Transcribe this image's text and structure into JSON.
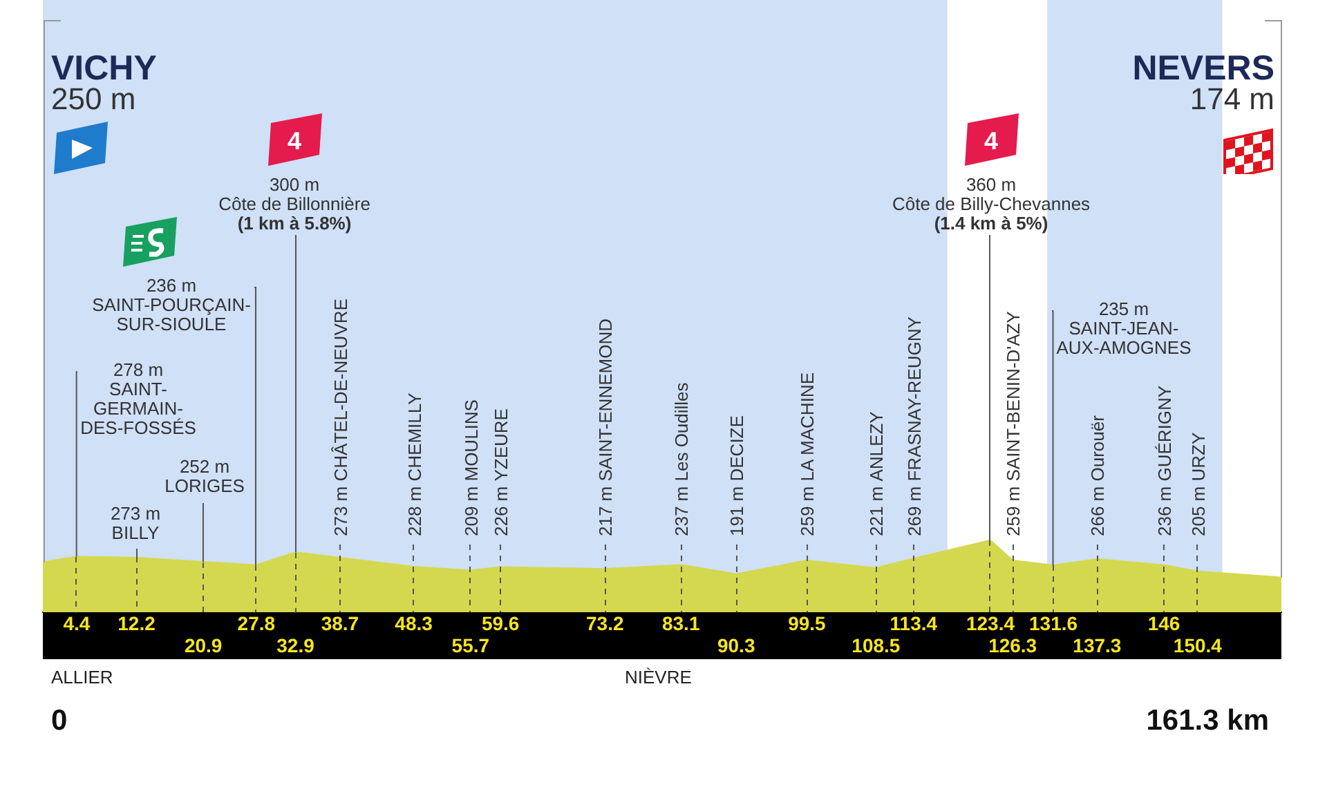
{
  "chart_data": {
    "type": "area",
    "color": "#d4d84e",
    "x": [
      0,
      4.4,
      12.2,
      20.9,
      27.8,
      32.9,
      38.7,
      48.3,
      55.7,
      59.6,
      73.2,
      83.1,
      90.3,
      99.5,
      108.5,
      113.4,
      123.4,
      126.3,
      131.6,
      137.3,
      146,
      150.4,
      161.3
    ],
    "values": [
      250,
      278,
      273,
      252,
      236,
      300,
      273,
      228,
      209,
      226,
      217,
      237,
      191,
      259,
      221,
      269,
      360,
      259,
      235,
      266,
      236,
      205,
      174
    ],
    "value_labels": [
      null,
      null,
      "273 m",
      null,
      null,
      null,
      "273 m",
      "228 m",
      "209 m",
      "226 m",
      "217 m",
      "237 m",
      "191 m",
      "259 m",
      "221 m",
      "269 m",
      null,
      "259 m",
      null,
      "266 m",
      "236 m",
      "205 m",
      null
    ],
    "xlim": [
      0,
      161.3
    ],
    "xticks": [
      4.4,
      12.2,
      27.8,
      38.7,
      48.3,
      59.6,
      73.2,
      83.1,
      99.5,
      113.4,
      123.4,
      131.6,
      146
    ],
    "tick_labels": "x",
    "grid": "x",
    "legend": false,
    "marker": "none",
    "bands": [
      {
        "axis": "x",
        "from": 0,
        "to": 117.8,
        "color": "#cfe0f7"
      },
      {
        "axis": "x",
        "from": 130.8,
        "to": 153.6,
        "color": "#cfe0f7"
      }
    ],
    "annotations": [
      {
        "text": "VICHY\n250 m",
        "x": 0,
        "y": 250
      },
      {
        "text": "NEVERS\n174 m",
        "x": 161.3,
        "y": 174
      },
      {
        "text": "278 m\nSAINT-\nGERMAIN-\nDES-FOSSÉS",
        "x": 4.4,
        "y": 278
      },
      "BILLY",
      {
        "text": "252 m\nLORIGES",
        "x": 20.9,
        "y": 252
      },
      {
        "text": "236 m\nSAINT-POURÇAIN-\nSUR-SIOULE",
        "x": 27.8,
        "y": 236
      },
      {
        "text": "300 m\nCôte de Billonnière\n(1 km à 5.8%)",
        "x": 32.9,
        "y": 300
      },
      "4",
      "CHÂTEL-DE-NEUVRE",
      "CHEMILLY",
      "MOULINS",
      "YZEURE",
      "SAINT-ENNEMOND",
      "Les Oudilles",
      "DECIZE",
      "LA MACHINE",
      "ANLEZY",
      "FRASNAY-REUGNY",
      {
        "text": "360 m\nCôte de Billy-Chevannes\n(1.4 km à 5%)",
        "x": 123.4,
        "y": 360
      },
      "4",
      "SAINT-BENIN-D'AZY",
      {
        "text": "235 m\nSAINT-JEAN-\nAUX-AMOGNES",
        "x": 131.6,
        "y": 235
      },
      "Ourouër",
      "GUÉRIGNY",
      "URZY",
      "ALLIER",
      "NIÈVRE",
      "0",
      {
        "text": "20.9",
        "x": 20.9
      },
      {
        "text": "32.9",
        "x": 32.9
      },
      {
        "text": "55.7",
        "x": 55.7
      },
      {
        "text": "90.3",
        "x": 90.3
      },
      {
        "text": "108.5",
        "x": 108.5
      },
      {
        "text": "126.3",
        "x": 126.3
      },
      {
        "text": "137.3",
        "x": 137.3
      },
      {
        "text": "150.4",
        "x": 150.4
      },
      "161.3 km"
    ]
  }
}
